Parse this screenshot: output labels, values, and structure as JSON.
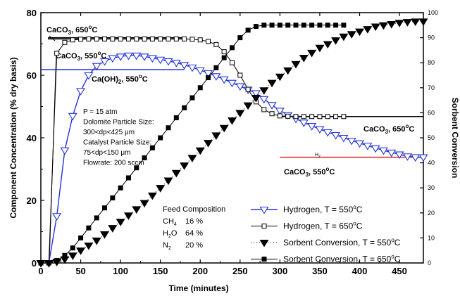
{
  "chart_data": {
    "type": "line",
    "xlabel": "Time (minutes)",
    "ylabel": "Component Concentration (% dry basis)",
    "y2label": "Sorbent Conversion",
    "xlim": [
      0,
      480
    ],
    "ylim": [
      0,
      80
    ],
    "y2lim": [
      0,
      100
    ],
    "xticks": [
      0,
      50,
      100,
      150,
      200,
      250,
      300,
      350,
      400,
      450
    ],
    "yticks": [
      0,
      20,
      40,
      60,
      80
    ],
    "y2ticks": [
      0,
      10,
      20,
      30,
      40,
      50,
      60,
      70,
      80,
      90,
      100
    ],
    "series": [
      {
        "name": "Hydrogen, T = 550°C",
        "axis": "left",
        "marker": "triangle-down-open",
        "color": "#2233dd",
        "x": [
          0,
          10,
          20,
          30,
          40,
          50,
          60,
          70,
          80,
          90,
          100,
          110,
          120,
          130,
          140,
          150,
          160,
          170,
          180,
          190,
          200,
          210,
          220,
          230,
          240,
          250,
          260,
          270,
          280,
          290,
          300,
          310,
          320,
          330,
          340,
          350,
          360,
          370,
          380,
          390,
          400,
          410,
          420,
          430,
          440,
          450,
          460,
          470,
          480
        ],
        "y": [
          0,
          0,
          15,
          36,
          47,
          55,
          60,
          63,
          64.5,
          65.5,
          66,
          66.3,
          66.3,
          66,
          65.5,
          65,
          64.5,
          64,
          63.3,
          62.5,
          61.6,
          60.7,
          59.7,
          58.7,
          57.6,
          56.5,
          55.4,
          54.3,
          52.4,
          50.5,
          48.7,
          47.3,
          46.1,
          44.9,
          43.8,
          42.8,
          41.8,
          40.9,
          40,
          39.1,
          38.3,
          37.5,
          36.7,
          36,
          35.3,
          34.7,
          34.1,
          33.8,
          33.8
        ]
      },
      {
        "name": "Hydrogen, T = 650°C",
        "axis": "left",
        "marker": "square-open",
        "color": "#000000",
        "x": [
          0,
          10,
          20,
          30,
          40,
          50,
          60,
          70,
          80,
          90,
          100,
          110,
          120,
          130,
          140,
          150,
          160,
          170,
          180,
          190,
          200,
          210,
          220,
          230,
          240,
          250,
          260,
          270,
          280,
          290,
          300,
          310,
          320,
          330,
          340,
          350,
          360,
          370,
          380
        ],
        "y": [
          0,
          0,
          67,
          70.5,
          71.3,
          71.5,
          71.6,
          71.6,
          71.6,
          71.6,
          71.6,
          71.6,
          71.6,
          71.6,
          71.6,
          71.6,
          71.6,
          71.6,
          71.6,
          71.5,
          71.3,
          70.8,
          69.8,
          67.5,
          64,
          60,
          55.5,
          51.5,
          49,
          47.7,
          47,
          46.9,
          46.8,
          46.8,
          46.8,
          46.8,
          46.8,
          46.8,
          46.8
        ]
      },
      {
        "name": "Sorbent Conversion, T = 550°C",
        "axis": "right",
        "marker": "triangle-down-filled",
        "color": "#000000",
        "linestyle": "dotted",
        "x": [
          0,
          10,
          20,
          30,
          40,
          50,
          60,
          70,
          80,
          90,
          100,
          110,
          120,
          130,
          140,
          150,
          160,
          170,
          180,
          190,
          200,
          210,
          220,
          230,
          240,
          250,
          260,
          270,
          280,
          290,
          300,
          310,
          320,
          330,
          340,
          350,
          360,
          370,
          380,
          390,
          400,
          410,
          420,
          430,
          440,
          450,
          460,
          470,
          480
        ],
        "y": [
          0,
          0,
          0.5,
          1.5,
          3,
          5,
          7,
          9,
          11.5,
          14,
          16.5,
          19,
          21.5,
          24,
          27,
          30,
          33,
          36,
          39,
          42,
          45,
          48,
          51,
          54,
          57,
          60,
          63,
          66,
          69,
          72,
          74.5,
          77,
          79.5,
          82,
          84,
          86,
          87.5,
          89,
          90.5,
          91.5,
          92.5,
          93.5,
          94.5,
          95,
          95.5,
          96,
          96.3,
          96.5,
          96.5
        ]
      },
      {
        "name": "Sorbent Conversion, T = 650°C",
        "axis": "right",
        "marker": "square-filled",
        "color": "#000000",
        "x": [
          0,
          10,
          20,
          30,
          40,
          50,
          60,
          70,
          80,
          90,
          100,
          110,
          120,
          130,
          140,
          150,
          160,
          170,
          180,
          190,
          200,
          210,
          220,
          230,
          240,
          250,
          260,
          270,
          280,
          290,
          300,
          310,
          320,
          330,
          340,
          350,
          360,
          370,
          380
        ],
        "y": [
          0,
          0,
          1,
          3,
          6,
          10,
          14,
          18,
          22,
          26,
          30,
          34,
          38,
          42,
          46,
          50,
          54,
          58,
          62,
          66,
          70,
          74,
          78,
          82,
          86,
          90,
          93,
          94.5,
          95,
          95,
          95,
          95,
          95,
          95,
          95,
          95,
          95,
          95,
          95
        ]
      }
    ],
    "reference_lines": [
      {
        "label_main": "CaCO",
        "label_sub": "3",
        "label_tail": ", 650",
        "label_sup": "o",
        "label_end": "C",
        "x": [
          0,
          180
        ],
        "y": 71.6,
        "color": "#000000"
      },
      {
        "label_main": "CaCO",
        "label_sub": "3",
        "label_tail": ", 550",
        "label_sup": "o",
        "label_end": "C",
        "x": [
          0,
          180
        ],
        "y": 72,
        "color": "#000000"
      },
      {
        "label_main": "Ca(OH)",
        "label_sub": "2",
        "label_tail": ", 550",
        "label_sup": "o",
        "label_end": "C",
        "x": [
          0,
          180
        ],
        "y": 61.8,
        "color": "#2233dd"
      },
      {
        "label_main": "CaCO",
        "label_sub": "3",
        "label_tail": ", 650",
        "label_sup": "o",
        "label_end": "C",
        "x": [
          300,
          480
        ],
        "y": 46.8,
        "color": "#000000"
      },
      {
        "label_main": "CaCO",
        "label_sub": "3",
        "label_tail": ", 550",
        "label_sup": "o",
        "label_end": "C",
        "x": [
          300,
          480
        ],
        "y": 33.8,
        "color": "#dd2222"
      }
    ],
    "legend": {
      "placement": "bottom-right",
      "entries": [
        {
          "pre": "Hydrogen, T = 550",
          "sup": "o",
          "post": "C"
        },
        {
          "pre": "Hydrogen, T = 650",
          "sup": "o",
          "post": "C"
        },
        {
          "pre": "Sorbent Conversion, T = 550",
          "sup": "o",
          "post": "C"
        },
        {
          "pre": "Sorbent Conversion, T = 650",
          "sup": "o",
          "post": "C"
        }
      ]
    },
    "conditions": [
      "P = 15 atm",
      "Dolomite Particle Size:",
      "300<dp<425 μm",
      "Catalyst Particle Size:",
      "75<dp<150 μm",
      "Flowrate: 200 sccm"
    ],
    "feed": {
      "title": "Feed Composition",
      "items": [
        {
          "main": "CH",
          "sub": "4",
          "value": "16 %"
        },
        {
          "main": "H",
          "sub": "2",
          "tail": "O",
          "value": "64 %"
        },
        {
          "main": "N",
          "sub": "2",
          "value": "20 %"
        }
      ]
    },
    "small_label": "H",
    "small_label_sub": "2"
  }
}
